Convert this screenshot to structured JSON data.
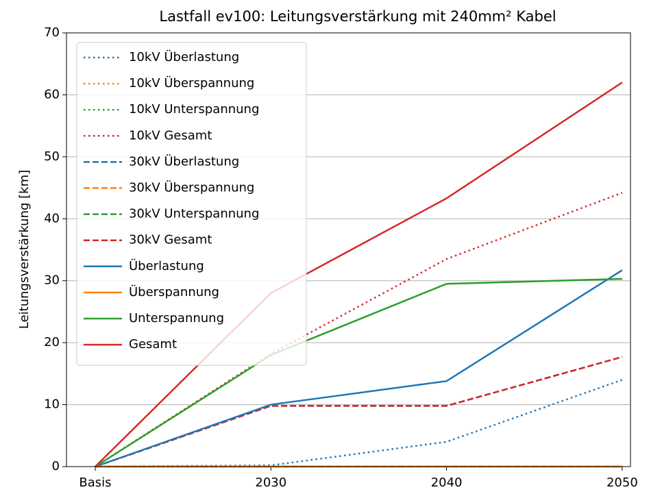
{
  "chart_data": {
    "type": "line",
    "title": "Lastfall ev100: Leitungsverstärkung mit 240mm² Kabel",
    "y_label": "Leitungsverstärkung [km]",
    "categories": [
      "Basis",
      "2030",
      "2040",
      "2050"
    ],
    "ylim": [
      0,
      70
    ],
    "yticks": [
      0,
      10,
      20,
      30,
      40,
      50,
      60,
      70
    ],
    "grid": "y",
    "legend": "upper left",
    "series": [
      {
        "name": "10kV Überlastung",
        "color": "#1f77b4",
        "style": "dotted",
        "values": [
          0,
          0.2,
          4,
          14
        ]
      },
      {
        "name": "10kV Überspannung",
        "color": "#ff7f0e",
        "style": "dotted",
        "values": [
          0,
          0,
          0,
          0
        ]
      },
      {
        "name": "10kV Unterspannung",
        "color": "#2ca02c",
        "style": "dotted",
        "values": [
          0,
          18,
          29.5,
          30.3
        ]
      },
      {
        "name": "10kV Gesamt",
        "color": "#d62728",
        "style": "dotted",
        "values": [
          0,
          18.2,
          33.5,
          44.2
        ]
      },
      {
        "name": "30kV Überlastung",
        "color": "#1f77b4",
        "style": "dashed",
        "values": [
          0,
          9.8,
          9.8,
          17.7
        ]
      },
      {
        "name": "30kV Überspannung",
        "color": "#ff7f0e",
        "style": "dashed",
        "values": [
          0,
          0,
          0,
          0
        ]
      },
      {
        "name": "30kV Unterspannung",
        "color": "#2ca02c",
        "style": "dashed",
        "values": [
          0,
          0,
          0,
          0
        ]
      },
      {
        "name": "30kV Gesamt",
        "color": "#d62728",
        "style": "dashed",
        "values": [
          0,
          9.8,
          9.8,
          17.7
        ]
      },
      {
        "name": "Überlastung",
        "color": "#1f77b4",
        "style": "solid",
        "values": [
          0,
          10,
          13.8,
          31.7
        ]
      },
      {
        "name": "Überspannung",
        "color": "#ff7f0e",
        "style": "solid",
        "values": [
          0,
          0,
          0,
          0
        ]
      },
      {
        "name": "Unterspannung",
        "color": "#2ca02c",
        "style": "solid",
        "values": [
          0,
          18,
          29.5,
          30.3
        ]
      },
      {
        "name": "Gesamt",
        "color": "#d62728",
        "style": "solid",
        "values": [
          0,
          28,
          43.3,
          62
        ]
      }
    ]
  }
}
